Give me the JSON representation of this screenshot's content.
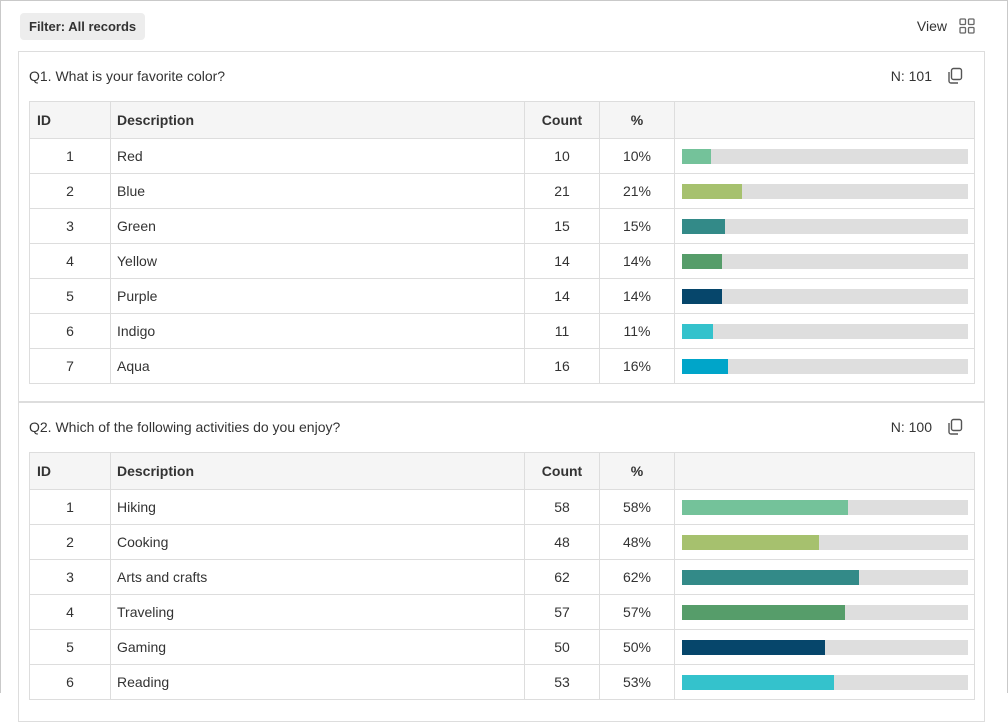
{
  "filter_label": "Filter: All records",
  "view_label": "View",
  "columns": {
    "id": "ID",
    "description": "Description",
    "count": "Count",
    "percent": "%"
  },
  "questions": [
    {
      "title": "Q1. What is your favorite color?",
      "n": "N: 101",
      "rows": [
        {
          "id": "1",
          "description": "Red",
          "count": "10",
          "percent": "10%",
          "fraction": 0.1,
          "color": "#74c29a"
        },
        {
          "id": "2",
          "description": "Blue",
          "count": "21",
          "percent": "21%",
          "fraction": 0.21,
          "color": "#a6c16e"
        },
        {
          "id": "3",
          "description": "Green",
          "count": "15",
          "percent": "15%",
          "fraction": 0.15,
          "color": "#338a88"
        },
        {
          "id": "4",
          "description": "Yellow",
          "count": "14",
          "percent": "14%",
          "fraction": 0.14,
          "color": "#569d6a"
        },
        {
          "id": "5",
          "description": "Purple",
          "count": "14",
          "percent": "14%",
          "fraction": 0.14,
          "color": "#06466b"
        },
        {
          "id": "6",
          "description": "Indigo",
          "count": "11",
          "percent": "11%",
          "fraction": 0.11,
          "color": "#34c2cc"
        },
        {
          "id": "7",
          "description": "Aqua",
          "count": "16",
          "percent": "16%",
          "fraction": 0.16,
          "color": "#00a5c9"
        }
      ]
    },
    {
      "title": "Q2. Which of the following activities do you enjoy?",
      "n": "N: 100",
      "rows": [
        {
          "id": "1",
          "description": "Hiking",
          "count": "58",
          "percent": "58%",
          "fraction": 0.58,
          "color": "#74c29a"
        },
        {
          "id": "2",
          "description": "Cooking",
          "count": "48",
          "percent": "48%",
          "fraction": 0.48,
          "color": "#a6c16e"
        },
        {
          "id": "3",
          "description": "Arts and crafts",
          "count": "62",
          "percent": "62%",
          "fraction": 0.62,
          "color": "#338a88"
        },
        {
          "id": "4",
          "description": "Traveling",
          "count": "57",
          "percent": "57%",
          "fraction": 0.57,
          "color": "#569d6a"
        },
        {
          "id": "5",
          "description": "Gaming",
          "count": "50",
          "percent": "50%",
          "fraction": 0.5,
          "color": "#06466b"
        },
        {
          "id": "6",
          "description": "Reading",
          "count": "53",
          "percent": "53%",
          "fraction": 0.53,
          "color": "#34c2cc"
        }
      ]
    }
  ],
  "icons": {
    "view": "grid-view-icon",
    "copy": "copy-icon"
  }
}
